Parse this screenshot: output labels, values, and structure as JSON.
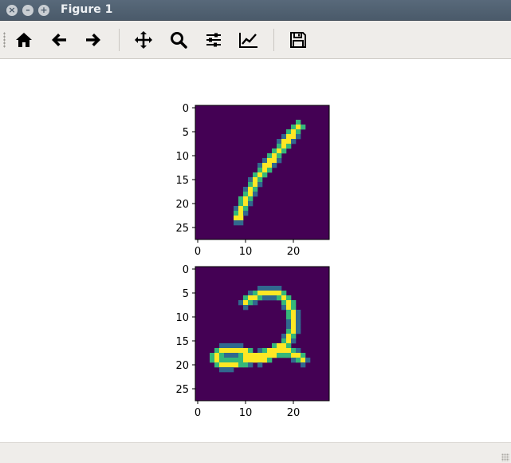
{
  "window": {
    "title": "Figure 1"
  },
  "toolbar": {
    "tools": [
      {
        "name": "home",
        "icon": "home-icon"
      },
      {
        "name": "back",
        "icon": "arrow-left-icon"
      },
      {
        "name": "forward",
        "icon": "arrow-right-icon"
      },
      {
        "name": "pan",
        "icon": "move-icon"
      },
      {
        "name": "zoom",
        "icon": "zoom-icon"
      },
      {
        "name": "subplots",
        "icon": "sliders-icon"
      },
      {
        "name": "customize",
        "icon": "line-chart-icon"
      },
      {
        "name": "save",
        "icon": "save-icon"
      }
    ]
  },
  "chart_data": [
    {
      "type": "heatmap",
      "title": "",
      "xlabel": "",
      "ylabel": "",
      "xlim": [
        -0.5,
        27.5
      ],
      "ylim": [
        27.5,
        -0.5
      ],
      "x_ticks": [
        "0",
        "10",
        "20"
      ],
      "y_ticks": [
        "0",
        "5",
        "10",
        "15",
        "20",
        "25"
      ],
      "colormap": "viridis",
      "background_color": "#440154",
      "digit_color": "#fde725",
      "edge_color": "#35b779",
      "depicted_digit": "1",
      "strokes": [
        {
          "points": [
            [
              21,
              4
            ],
            [
              17,
              9
            ],
            [
              13,
              14
            ],
            [
              10,
              19
            ],
            [
              8.5,
              23
            ]
          ],
          "width": 2.2
        }
      ]
    },
    {
      "type": "heatmap",
      "title": "",
      "xlabel": "",
      "ylabel": "",
      "xlim": [
        -0.5,
        27.5
      ],
      "ylim": [
        27.5,
        -0.5
      ],
      "x_ticks": [
        "0",
        "10",
        "20"
      ],
      "y_ticks": [
        "0",
        "5",
        "10",
        "15",
        "20",
        "25"
      ],
      "colormap": "viridis",
      "background_color": "#440154",
      "digit_color": "#fde725",
      "edge_color": "#35b779",
      "depicted_digit": "2",
      "strokes": [
        {
          "points": [
            [
              10,
              7
            ],
            [
              13,
              5
            ],
            [
              17,
              5
            ],
            [
              19,
              7
            ],
            [
              20,
              10
            ],
            [
              20,
              13
            ],
            [
              18,
              16
            ],
            [
              15,
              17.5
            ],
            [
              12,
              18.5
            ],
            [
              9,
              19.5
            ],
            [
              5,
              20
            ],
            [
              3.5,
              18.5
            ],
            [
              5.5,
              17
            ],
            [
              9,
              17
            ],
            [
              11,
              18
            ],
            [
              13,
              19
            ],
            [
              16,
              17.5
            ],
            [
              19,
              17
            ],
            [
              22,
              19
            ]
          ],
          "width": 2.1
        }
      ]
    }
  ]
}
